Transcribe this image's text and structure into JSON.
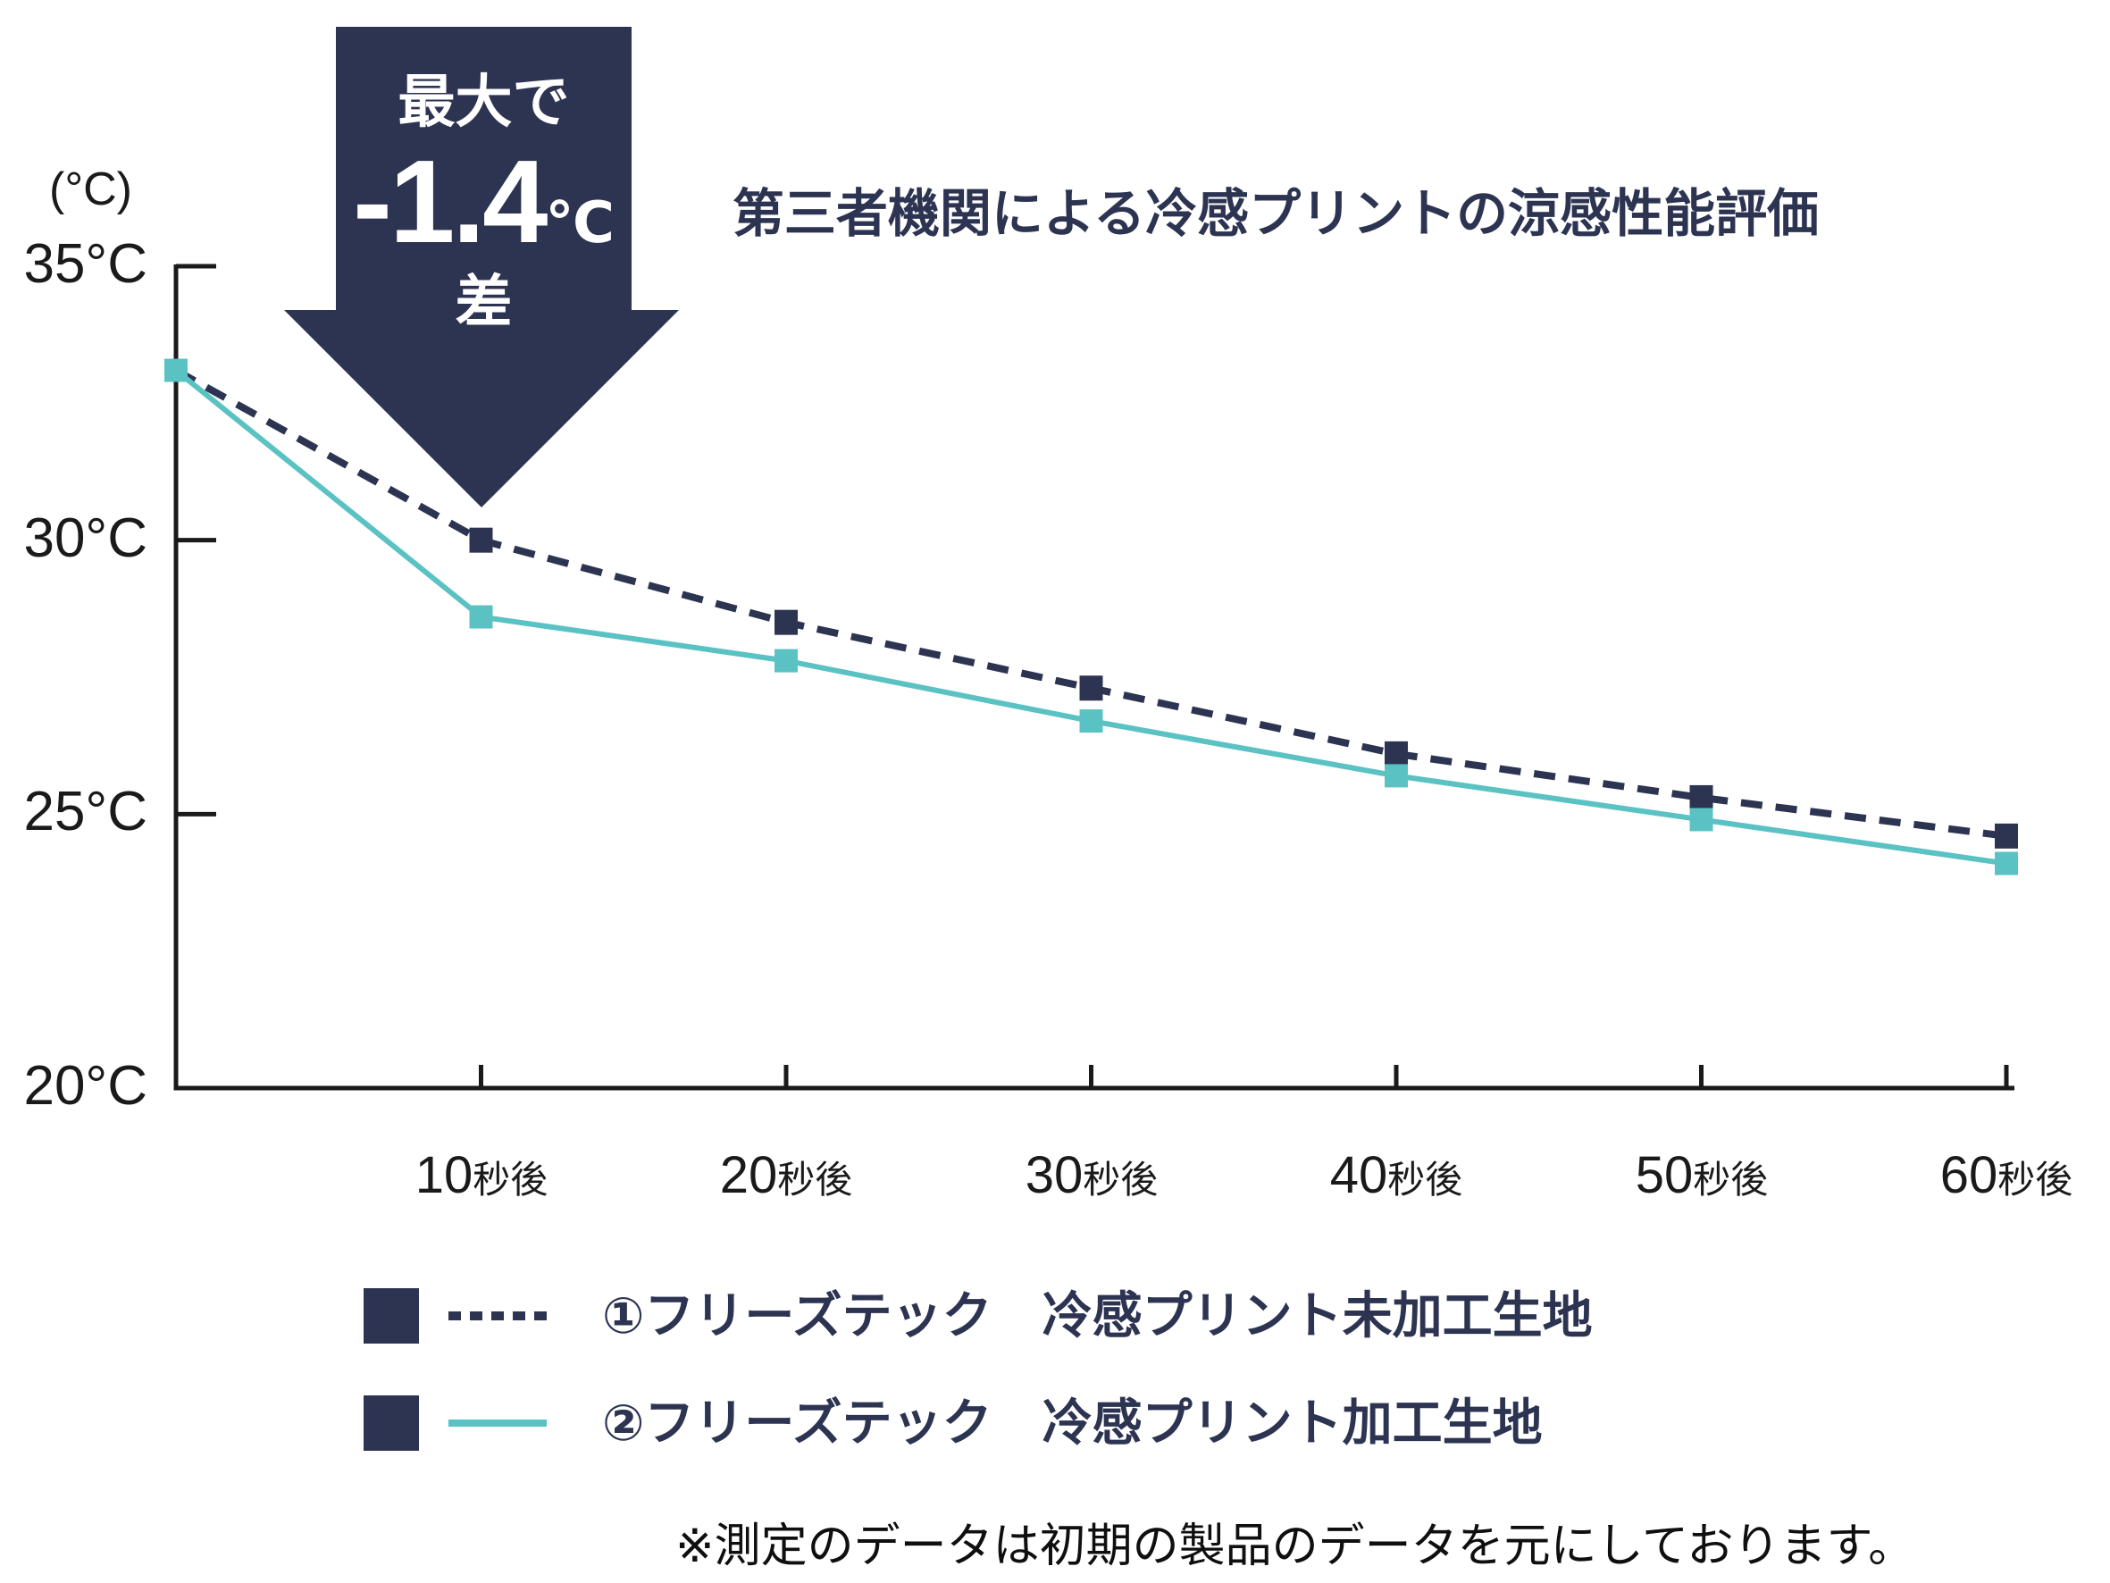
{
  "title": "第三者機関による冷感プリントの涼感性能評価",
  "annotation": {
    "line1": "最大で",
    "value": "-1.4",
    "unit": "℃",
    "line3": "差"
  },
  "y_axis": {
    "unit": "(°C)",
    "ticks": [
      "35°C",
      "30°C",
      "25°C",
      "20°C"
    ]
  },
  "x_axis": {
    "ticks": [
      {
        "num": "10",
        "suffix": "秒後"
      },
      {
        "num": "20",
        "suffix": "秒後"
      },
      {
        "num": "30",
        "suffix": "秒後"
      },
      {
        "num": "40",
        "suffix": "秒後"
      },
      {
        "num": "50",
        "suffix": "秒後"
      },
      {
        "num": "60",
        "suffix": "秒後"
      }
    ]
  },
  "legend": [
    {
      "label": "①フリーズテック　冷感プリント未加工生地",
      "line_style": "dashed",
      "line_color": "#2d3452",
      "swatch_color": "#2d3452"
    },
    {
      "label": "②フリーズテック　冷感プリント加工生地",
      "line_style": "solid",
      "line_color": "#5bc2c4",
      "swatch_color": "#2d3452"
    }
  ],
  "footnote": "※測定のデータは初期の製品のデータを元にしております。",
  "colors": {
    "navy": "#2d3452",
    "teal": "#5bc2c4",
    "axis": "#1a1a1a",
    "background": "#ffffff"
  },
  "chart_data": {
    "type": "line",
    "title": "第三者機関による冷感プリントの涼感性能評価",
    "x_seconds": [
      0,
      10,
      20,
      30,
      40,
      50,
      60
    ],
    "categories": [
      "",
      "10秒後",
      "20秒後",
      "30秒後",
      "40秒後",
      "50秒後",
      "60秒後"
    ],
    "series": [
      {
        "name": "①フリーズテック 冷感プリント未加工生地",
        "style": "dashed",
        "color": "#2d3452",
        "values": [
          33.1,
          30.0,
          28.5,
          27.3,
          26.1,
          25.3,
          24.6
        ]
      },
      {
        "name": "②フリーズテック 冷感プリント加工生地",
        "style": "solid",
        "color": "#5bc2c4",
        "values": [
          33.1,
          28.6,
          27.8,
          26.7,
          25.7,
          24.9,
          24.1
        ]
      }
    ],
    "ylabel": "(°C)",
    "ylim": [
      20,
      35
    ],
    "yticks": [
      35,
      30,
      25,
      20
    ],
    "grid": false,
    "legend_position": "bottom",
    "annotation": "最大で -1.4℃ 差（10秒後の最大差を示す下向き矢印）"
  }
}
